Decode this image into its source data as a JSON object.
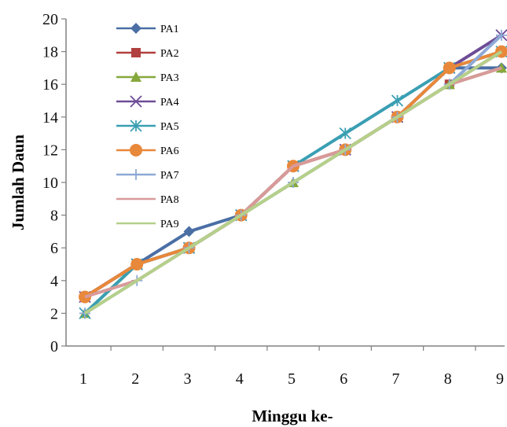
{
  "chart_data": {
    "type": "line",
    "title": "",
    "xlabel": "Minggu ke-",
    "ylabel": "Jumlah Daun",
    "x": [
      1,
      2,
      3,
      4,
      5,
      6,
      7,
      8,
      9
    ],
    "ylim": [
      0,
      20
    ],
    "yticks": [
      0,
      2,
      4,
      6,
      8,
      10,
      12,
      14,
      16,
      18,
      20
    ],
    "grid": false,
    "legend_position": "top-left inside plot",
    "series": [
      {
        "name": "PA1",
        "color": "#4a6fa5",
        "marker": "diamond",
        "values": [
          3,
          5,
          7,
          8,
          11,
          12,
          14,
          17,
          17
        ]
      },
      {
        "name": "PA2",
        "color": "#b0413e",
        "marker": "square",
        "values": [
          3,
          5,
          6,
          8,
          11,
          12,
          14,
          16,
          18
        ]
      },
      {
        "name": "PA3",
        "color": "#86a83c",
        "marker": "triangle",
        "values": [
          2,
          5,
          6,
          8,
          10,
          12,
          14,
          16,
          17
        ]
      },
      {
        "name": "PA4",
        "color": "#6e4c96",
        "marker": "x",
        "values": [
          3,
          5,
          6,
          8,
          11,
          12,
          14,
          17,
          19
        ]
      },
      {
        "name": "PA5",
        "color": "#3a9fb3",
        "marker": "star",
        "values": [
          2,
          5,
          6,
          8,
          11,
          13,
          15,
          17,
          18
        ]
      },
      {
        "name": "PA6",
        "color": "#e8883a",
        "marker": "circle",
        "values": [
          3,
          5,
          6,
          8,
          11,
          12,
          14,
          17,
          18
        ]
      },
      {
        "name": "PA7",
        "color": "#8fa9d6",
        "marker": "plus",
        "values": [
          2,
          4,
          6,
          8,
          10,
          12,
          14,
          16,
          19
        ]
      },
      {
        "name": "PA8",
        "color": "#d89a9a",
        "marker": "none",
        "values": [
          3,
          4,
          6,
          8,
          11,
          12,
          14,
          16,
          17
        ]
      },
      {
        "name": "PA9",
        "color": "#b5d08a",
        "marker": "none",
        "values": [
          2,
          4,
          6,
          8,
          10,
          12,
          14,
          16,
          18
        ]
      }
    ]
  }
}
